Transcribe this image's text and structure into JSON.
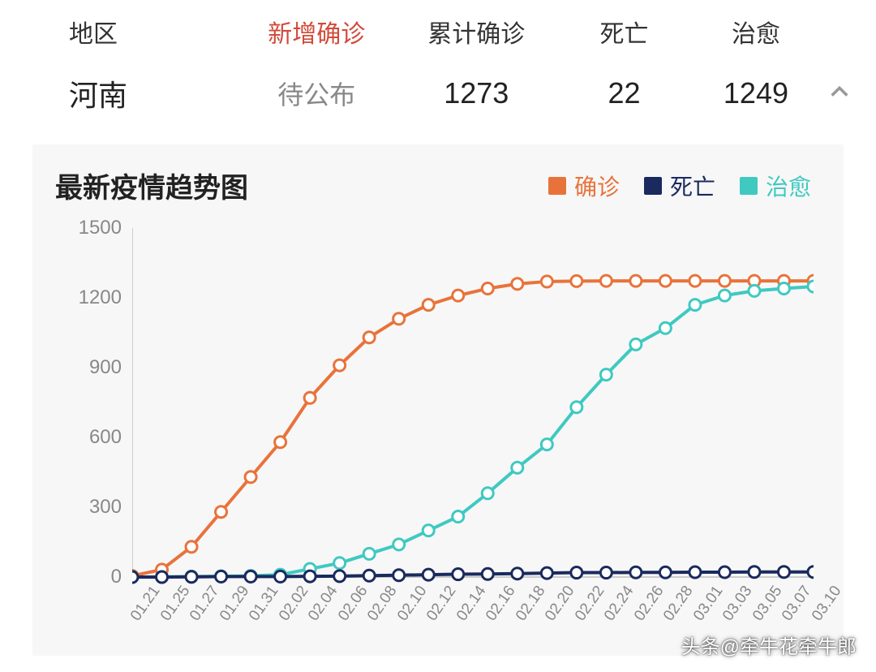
{
  "table": {
    "headers": {
      "region": "地区",
      "new_confirmed": "新增确诊",
      "total_confirmed": "累计确诊",
      "deaths": "死亡",
      "cured": "治愈"
    },
    "row": {
      "region": "河南",
      "new_confirmed": "待公布",
      "total_confirmed": "1273",
      "deaths": "22",
      "cured": "1249"
    }
  },
  "chart": {
    "title": "最新疫情趋势图",
    "type": "line",
    "background_color": "#f7f7f7",
    "axis_color": "#cccccc",
    "tick_label_color": "#888888",
    "y_axis": {
      "min": 0,
      "max": 1500,
      "step": 300
    },
    "x_labels": [
      "01.21",
      "01.25",
      "01.27",
      "01.29",
      "01.31",
      "02.02",
      "02.04",
      "02.06",
      "02.08",
      "02.10",
      "02.12",
      "02.14",
      "02.16",
      "02.18",
      "02.20",
      "02.22",
      "02.24",
      "02.26",
      "02.28",
      "03.01",
      "03.03",
      "03.05",
      "03.07",
      "03.10"
    ],
    "legend": [
      {
        "key": "confirmed",
        "label": "确诊",
        "color": "#e8733a"
      },
      {
        "key": "deaths",
        "label": "死亡",
        "color": "#1a2a5e"
      },
      {
        "key": "cured",
        "label": "治愈",
        "color": "#3fc9c1"
      }
    ],
    "series": {
      "confirmed": [
        5,
        32,
        130,
        280,
        430,
        580,
        770,
        910,
        1030,
        1110,
        1170,
        1210,
        1240,
        1260,
        1270,
        1272,
        1273,
        1273,
        1273,
        1273,
        1273,
        1273,
        1273,
        1273
      ],
      "deaths": [
        0,
        0,
        1,
        2,
        2,
        2,
        3,
        4,
        6,
        8,
        10,
        12,
        13,
        15,
        17,
        19,
        19,
        20,
        20,
        21,
        21,
        22,
        22,
        22
      ],
      "cured": [
        0,
        0,
        2,
        3,
        5,
        10,
        35,
        60,
        100,
        140,
        200,
        260,
        360,
        470,
        570,
        730,
        870,
        1000,
        1070,
        1170,
        1210,
        1230,
        1240,
        1249
      ]
    },
    "line_width": 4,
    "marker_radius": 7,
    "marker_fill": "#ffffff",
    "marker_stroke_width": 3
  },
  "watermark": "头条@牵牛花牵牛郎"
}
